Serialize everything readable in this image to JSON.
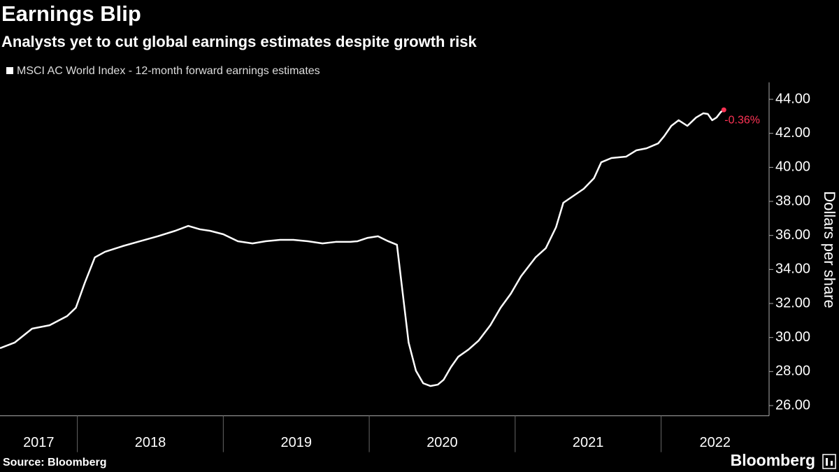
{
  "chart_data": {
    "type": "line",
    "title": "Earnings Blip",
    "subtitle": "Analysts yet to cut global earnings estimates despite growth risk",
    "y_label": "Dollars per share",
    "source": "Source: Bloomberg",
    "logo": "Bloomberg",
    "annotation": {
      "text": "-0.36%",
      "color": "#ff3355"
    },
    "xlim": [
      2017.47,
      2022.74
    ],
    "xticks": [
      2017,
      2018,
      2019,
      2020,
      2021,
      2022
    ],
    "ylim": [
      25.4,
      45
    ],
    "yticks": [
      {
        "value": 26,
        "label": "26.00"
      },
      {
        "value": 28,
        "label": "28.00"
      },
      {
        "value": 30,
        "label": "30.00"
      },
      {
        "value": 32,
        "label": "32.00"
      },
      {
        "value": 34,
        "label": "34.00"
      },
      {
        "value": 36,
        "label": "36.00"
      },
      {
        "value": 38,
        "label": "38.00"
      },
      {
        "value": 40,
        "label": "40.00"
      },
      {
        "value": 42,
        "label": "42.00"
      },
      {
        "value": 44,
        "label": "44.00"
      }
    ],
    "y_axis_side": "right",
    "grid": false,
    "legend": "top-left",
    "series": [
      {
        "name": "MSCI AC World Index - 12-month forward earnings estimates",
        "color": "#ffffff",
        "x": [
          2017.47,
          2017.57,
          2017.69,
          2017.81,
          2017.93,
          2017.99,
          2018.05,
          2018.12,
          2018.19,
          2018.31,
          2018.43,
          2018.55,
          2018.67,
          2018.76,
          2018.84,
          2018.91,
          2019.0,
          2019.1,
          2019.2,
          2019.29,
          2019.39,
          2019.48,
          2019.58,
          2019.68,
          2019.77,
          2019.87,
          2019.92,
          2019.99,
          2020.06,
          2020.13,
          2020.19,
          2020.23,
          2020.27,
          2020.32,
          2020.37,
          2020.42,
          2020.47,
          2020.51,
          2020.56,
          2020.61,
          2020.68,
          2020.75,
          2020.83,
          2020.9,
          2020.97,
          2021.04,
          2021.14,
          2021.21,
          2021.28,
          2021.33,
          2021.4,
          2021.47,
          2021.54,
          2021.59,
          2021.66,
          2021.76,
          2021.83,
          2021.9,
          2021.98,
          2022.02,
          2022.07,
          2022.12,
          2022.18,
          2022.24,
          2022.29,
          2022.32,
          2022.35,
          2022.38,
          2022.41,
          2022.43
        ],
        "values": [
          29.37,
          29.7,
          30.52,
          30.72,
          31.26,
          31.75,
          33.19,
          34.71,
          35.04,
          35.37,
          35.66,
          35.95,
          36.27,
          36.56,
          36.36,
          36.27,
          36.07,
          35.66,
          35.53,
          35.66,
          35.74,
          35.74,
          35.66,
          35.53,
          35.62,
          35.62,
          35.66,
          35.86,
          35.95,
          35.66,
          35.45,
          32.57,
          29.7,
          28.05,
          27.31,
          27.15,
          27.23,
          27.52,
          28.26,
          28.87,
          29.29,
          29.82,
          30.72,
          31.75,
          32.57,
          33.6,
          34.71,
          35.25,
          36.48,
          37.92,
          38.33,
          38.74,
          39.36,
          40.3,
          40.55,
          40.63,
          41.0,
          41.12,
          41.41,
          41.82,
          42.44,
          42.77,
          42.44,
          42.93,
          43.18,
          43.14,
          42.77,
          42.93,
          43.26,
          43.38
        ]
      }
    ]
  }
}
